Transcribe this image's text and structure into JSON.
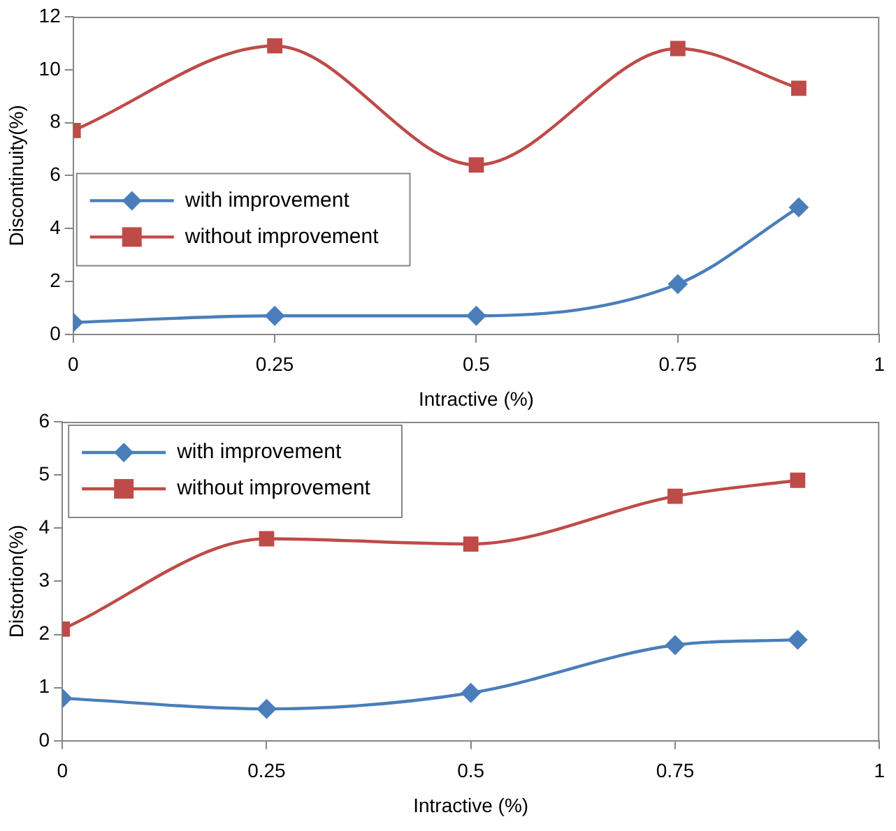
{
  "chart_data": [
    {
      "type": "line",
      "xlabel": "Intractive (%)",
      "ylabel": "Discontinuity(%)",
      "x": [
        0,
        0.25,
        0.5,
        0.75,
        0.9
      ],
      "xlim": [
        0,
        1
      ],
      "xticks": [
        0,
        0.25,
        0.5,
        0.75,
        1
      ],
      "ylim": [
        0,
        12
      ],
      "yticks": [
        0,
        2,
        4,
        6,
        8,
        10,
        12
      ],
      "grid": false,
      "legend": "left",
      "series": [
        {
          "name": "with improvement",
          "color": "#4a7ebb",
          "marker": "diamond",
          "values": [
            0.45,
            0.7,
            0.7,
            1.9,
            4.8
          ]
        },
        {
          "name": "without improvement",
          "color": "#be4b48",
          "marker": "square",
          "values": [
            7.7,
            10.9,
            6.4,
            10.8,
            9.3
          ]
        }
      ]
    },
    {
      "type": "line",
      "xlabel": "Intractive (%)",
      "ylabel": "Distortion(%)",
      "x": [
        0,
        0.25,
        0.5,
        0.75,
        0.9
      ],
      "xlim": [
        0,
        1
      ],
      "xticks": [
        0,
        0.25,
        0.5,
        0.75,
        1
      ],
      "ylim": [
        0,
        6
      ],
      "yticks": [
        0,
        1,
        2,
        3,
        4,
        5,
        6
      ],
      "grid": false,
      "legend": "top left",
      "series": [
        {
          "name": "with improvement",
          "color": "#4a7ebb",
          "marker": "diamond",
          "values": [
            0.8,
            0.6,
            0.9,
            1.8,
            1.9
          ]
        },
        {
          "name": "without improvement",
          "color": "#be4b48",
          "marker": "square",
          "values": [
            2.1,
            3.8,
            3.7,
            4.6,
            4.9
          ]
        }
      ]
    }
  ]
}
